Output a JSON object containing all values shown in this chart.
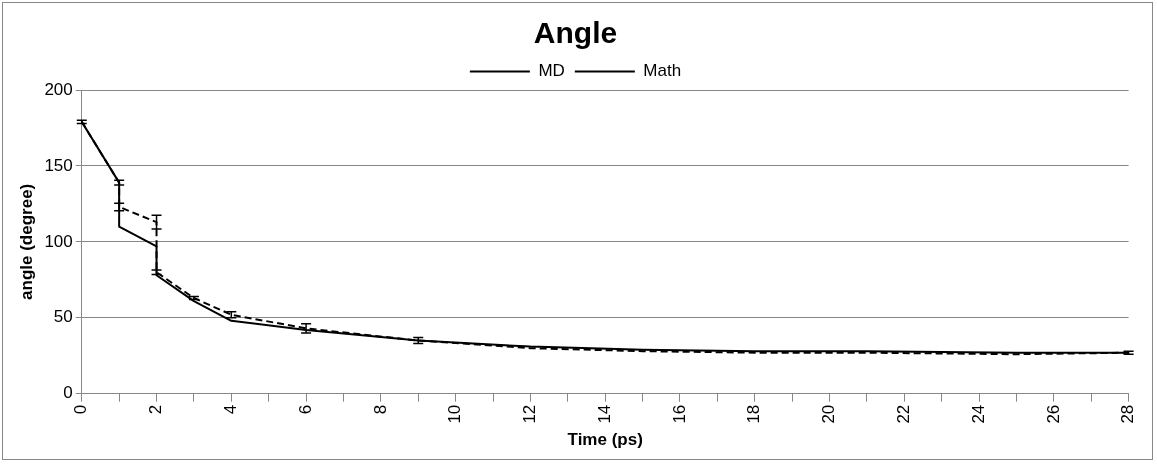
{
  "chart_data": {
    "type": "line",
    "title": "Angle",
    "xlabel": "Time (ps)",
    "ylabel": "angle (degree)",
    "x": [
      0,
      1,
      1,
      2,
      2,
      3,
      4,
      6,
      9,
      12,
      15,
      18,
      21,
      25,
      28
    ],
    "series": [
      {
        "name": "MD",
        "color": "#000000",
        "line_style": "dashed",
        "values": [
          179,
          139,
          123,
          113,
          80,
          63,
          52,
          43,
          35,
          30,
          28,
          27,
          27,
          26,
          27
        ],
        "errors": [
          1,
          1.5,
          2.5,
          4.5,
          1.5,
          1,
          2,
          3,
          2,
          null,
          null,
          null,
          null,
          null,
          1
        ]
      },
      {
        "name": "Math",
        "color": "#000000",
        "line_style": "solid",
        "values": [
          179,
          139,
          110,
          97,
          78,
          61,
          48,
          42,
          35,
          31,
          29,
          28,
          28,
          27,
          27
        ]
      }
    ],
    "xlim": [
      0,
      28
    ],
    "xticks": [
      0,
      {
        "value": 1,
        "label": null
      },
      2,
      {
        "value": 3,
        "label": null
      },
      4,
      {
        "value": 5,
        "label": null
      },
      6,
      {
        "value": 7,
        "label": null
      },
      8,
      {
        "value": 9,
        "label": null
      },
      10,
      {
        "value": 11,
        "label": null
      },
      12,
      {
        "value": 13,
        "label": null
      },
      14,
      {
        "value": 15,
        "label": null
      },
      16,
      {
        "value": 17,
        "label": null
      },
      18,
      {
        "value": 19,
        "label": null
      },
      20,
      {
        "value": 21,
        "label": null
      },
      22,
      {
        "value": 23,
        "label": null
      },
      24,
      {
        "value": 25,
        "label": null
      },
      26,
      {
        "value": 27,
        "label": null
      },
      28
    ],
    "ylim": [
      0,
      200
    ],
    "yticks": [
      0,
      50,
      100,
      150,
      200
    ],
    "grid": "y",
    "legend": "top",
    "marker": "none"
  }
}
